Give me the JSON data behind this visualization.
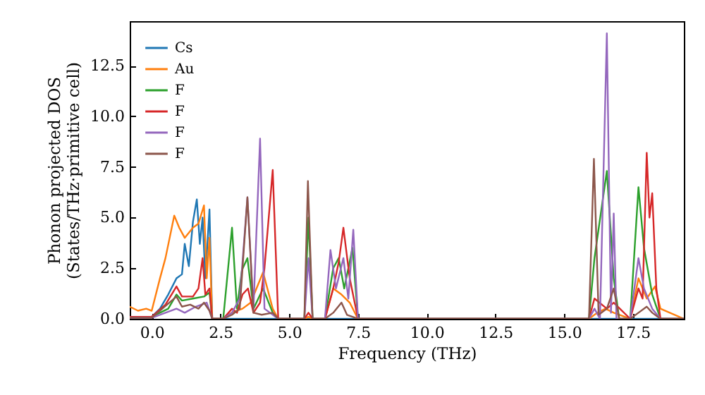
{
  "chart_data": {
    "type": "line",
    "xlabel": "Frequency (THz)",
    "ylabel": "Phonon projected DOS\n(States/THz·primitive cell)",
    "xlim": [
      -0.8,
      19.35
    ],
    "ylim": [
      0,
      14.7
    ],
    "xticks": [
      {
        "value": 0,
        "label": "0.0"
      },
      2.5,
      {
        "value": 5,
        "label": "5.0"
      },
      7.5,
      {
        "value": 10,
        "label": "10.0"
      },
      12.5,
      {
        "value": 15,
        "label": "15.0"
      },
      17.5
    ],
    "yticks": [
      {
        "value": 0,
        "label": "0.0"
      },
      2.5,
      {
        "value": 5,
        "label": "5.0"
      },
      7.5,
      {
        "value": 10,
        "label": "10.0"
      },
      12.5
    ],
    "legend": "top left",
    "grid": false,
    "series": [
      {
        "name": "Cs",
        "color": "#1f77b4",
        "x": [
          -0.8,
          0,
          0.3,
          0.6,
          0.9,
          1.1,
          1.2,
          1.35,
          1.5,
          1.64,
          1.75,
          1.85,
          1.95,
          2.1,
          2.2,
          19.35
        ],
        "values": [
          0.1,
          0.1,
          0.5,
          1.2,
          2.0,
          2.2,
          3.7,
          2.6,
          4.8,
          5.9,
          3.7,
          5.0,
          2.0,
          5.4,
          0,
          0
        ]
      },
      {
        "name": "Au",
        "color": "#ff7f0e",
        "x": [
          -0.8,
          -0.5,
          -0.2,
          0,
          0.3,
          0.5,
          0.82,
          1.0,
          1.2,
          1.5,
          1.7,
          1.9,
          2.0,
          2.1,
          2.2,
          2.6,
          2.9,
          3.3,
          3.6,
          4.05,
          4.4,
          4.6,
          5.55,
          5.7,
          5.85,
          6.3,
          6.6,
          6.9,
          7.2,
          7.5,
          15.9,
          16.2,
          16.5,
          16.8,
          17.4,
          17.7,
          18.0,
          18.3,
          18.5,
          19.35
        ],
        "values": [
          0.6,
          0.4,
          0.5,
          0.4,
          2.0,
          3.0,
          5.1,
          4.5,
          4.0,
          4.5,
          4.7,
          5.6,
          2.0,
          4.0,
          0,
          0,
          0.3,
          0.5,
          0.8,
          2.3,
          0.5,
          0,
          0,
          0.1,
          0,
          0,
          1.5,
          1.2,
          0.8,
          0,
          0,
          0.3,
          0.5,
          0.3,
          0,
          2.0,
          1.0,
          1.6,
          0.5,
          0
        ]
      },
      {
        "name": "F",
        "color": "#2ca02c",
        "x": [
          -0.8,
          0,
          0.6,
          0.9,
          1.1,
          1.5,
          1.9,
          2.1,
          2.2,
          2.6,
          2.92,
          3.1,
          3.28,
          3.48,
          3.7,
          4.05,
          4.4,
          4.6,
          5.55,
          5.7,
          5.85,
          6.3,
          6.6,
          6.8,
          7.0,
          7.3,
          7.5,
          15.9,
          16.1,
          16.55,
          16.8,
          17.0,
          17.4,
          17.7,
          17.9,
          18.2,
          18.5,
          19.35
        ],
        "values": [
          0.1,
          0.1,
          0.5,
          1.2,
          0.9,
          1.0,
          1.1,
          1.3,
          0,
          0,
          4.5,
          0.5,
          2.4,
          3.0,
          0.5,
          1.5,
          0.3,
          0,
          0,
          5.0,
          0,
          0,
          2.5,
          3.0,
          1.5,
          3.5,
          0,
          0,
          3.0,
          7.3,
          2.0,
          0,
          0,
          6.5,
          3.5,
          1.2,
          0,
          0
        ]
      },
      {
        "name": "F",
        "color": "#d62728",
        "x": [
          -0.8,
          0,
          0.5,
          0.9,
          1.1,
          1.5,
          1.7,
          1.85,
          1.95,
          2.1,
          2.2,
          2.6,
          2.92,
          3.1,
          3.3,
          3.5,
          3.7,
          3.94,
          4.1,
          4.4,
          4.6,
          5.55,
          5.7,
          5.85,
          6.3,
          6.6,
          6.8,
          6.97,
          7.2,
          7.5,
          15.9,
          16.1,
          16.55,
          16.8,
          17.4,
          17.7,
          17.85,
          18.0,
          18.1,
          18.2,
          18.35,
          18.5,
          19.35
        ],
        "values": [
          0.1,
          0.1,
          0.7,
          1.6,
          1.1,
          1.1,
          1.5,
          3.0,
          1.2,
          1.5,
          0,
          0,
          0.5,
          0.3,
          1.2,
          1.5,
          0.3,
          0.8,
          2.5,
          7.35,
          0,
          0,
          0.3,
          0,
          0,
          1.5,
          2.8,
          4.5,
          2.0,
          0,
          0,
          1.0,
          0.5,
          0.8,
          0,
          1.5,
          1.0,
          8.2,
          5.0,
          6.2,
          1.5,
          0,
          0
        ]
      },
      {
        "name": "F",
        "color": "#9467bd",
        "x": [
          -0.8,
          0,
          0.9,
          1.2,
          1.6,
          2.0,
          2.2,
          2.6,
          2.92,
          3.2,
          3.48,
          3.7,
          3.94,
          4.1,
          4.6,
          5.55,
          5.7,
          5.85,
          6.3,
          6.5,
          6.7,
          6.97,
          7.15,
          7.33,
          7.5,
          15.9,
          16.1,
          16.3,
          16.55,
          16.7,
          16.8,
          16.9,
          17.4,
          17.7,
          17.9,
          18.2,
          18.5,
          19.35
        ],
        "values": [
          0.05,
          0.05,
          0.5,
          0.3,
          0.6,
          0.8,
          0,
          0,
          0.3,
          1.0,
          6.0,
          0.5,
          8.9,
          0.5,
          0,
          0,
          3.0,
          0,
          0,
          3.4,
          1.5,
          3.0,
          1.0,
          4.4,
          0,
          0,
          0.5,
          0,
          14.1,
          0.3,
          5.2,
          0,
          0,
          3.0,
          1.5,
          0.5,
          0,
          0
        ]
      },
      {
        "name": "F",
        "color": "#8c564b",
        "x": [
          -0.8,
          0,
          0.9,
          1.1,
          1.4,
          1.7,
          1.9,
          2.1,
          2.2,
          2.6,
          2.92,
          3.2,
          3.48,
          3.7,
          4.0,
          4.4,
          4.6,
          5.55,
          5.68,
          5.85,
          6.3,
          6.6,
          6.9,
          7.1,
          7.5,
          15.9,
          16.08,
          16.25,
          16.55,
          16.8,
          17.0,
          17.4,
          17.7,
          18.0,
          18.2,
          18.5,
          19.35
        ],
        "values": [
          0.05,
          0.05,
          1.1,
          0.6,
          0.7,
          0.5,
          0.8,
          0.4,
          0,
          0,
          0.2,
          0.5,
          6.0,
          0.3,
          0.2,
          0.3,
          0,
          0,
          6.8,
          0,
          0,
          0.3,
          0.8,
          0.2,
          0,
          0,
          7.9,
          0.2,
          0.5,
          1.5,
          0,
          0,
          0.3,
          0.6,
          0.3,
          0,
          0
        ]
      }
    ]
  }
}
